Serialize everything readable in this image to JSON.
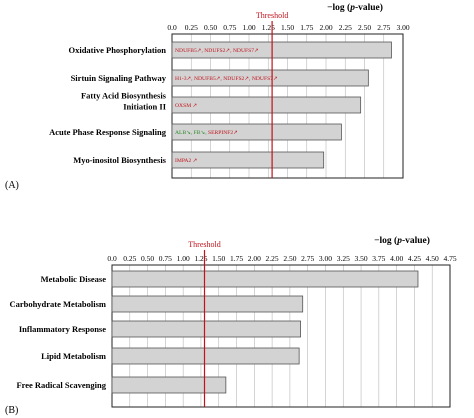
{
  "colors": {
    "bar_fill": "#d3d3d3",
    "bar_stroke": "#555555",
    "grid": "#b8b8b8",
    "threshold": "#c0131b",
    "gene_red": "#c0131b",
    "gene_green": "#2a8a2a"
  },
  "chart_data": [
    {
      "type": "bar",
      "orientation": "horizontal",
      "panel_label": "(A)",
      "xlabel_main": "−log (",
      "xlabel_italic": "p",
      "xlabel_end": "-value)",
      "threshold_label": "Threshold",
      "threshold": 1.3,
      "xlim": [
        0,
        3.0
      ],
      "ticks": [
        "0.0",
        "0.25",
        "0.50",
        "0.75",
        "1.00",
        "1.25",
        "1.50",
        "1.75",
        "2.00",
        "2.25",
        "2.50",
        "2.75",
        "3.00"
      ],
      "categories": [
        [
          "Oxidative Phosphorylation"
        ],
        [
          "Sirtuin Signaling Pathway"
        ],
        [
          "Fatty Acid Biosynthesis",
          "Initiation II"
        ],
        [
          "Acute Phase Response Signaling"
        ],
        [
          "Myo-inositol Biosynthesis"
        ]
      ],
      "values": [
        2.85,
        2.55,
        2.45,
        2.2,
        1.97
      ],
      "annotations": [
        [
          {
            "text": "NDUFB5↗, NDUFS2↗, NDUFS7↗",
            "color": "red"
          }
        ],
        [
          {
            "text": "H1-3↗, NDUFB5↗, NDUFS2↗, NDUFS7↗",
            "color": "red"
          }
        ],
        [
          {
            "text": "OXSM ↗",
            "color": "red"
          }
        ],
        [
          {
            "text": "ALB↘, FB↘, ",
            "color": "green"
          },
          {
            "text": "SERPINF2↗",
            "color": "red"
          }
        ],
        [
          {
            "text": "IMPA2 ↗",
            "color": "red"
          }
        ]
      ]
    },
    {
      "type": "bar",
      "orientation": "horizontal",
      "panel_label": "(B)",
      "xlabel_main": "−log (",
      "xlabel_italic": "p",
      "xlabel_end": "-value)",
      "threshold_label": "Threshold",
      "threshold": 1.3,
      "xlim": [
        0,
        4.75
      ],
      "ticks": [
        "0.0",
        "0.25",
        "0.50",
        "0.75",
        "1.00",
        "1.25",
        "1.50",
        "1.75",
        "2.00",
        "2.25",
        "2.50",
        "2.75",
        "3.00",
        "3.25",
        "3.50",
        "3.75",
        "4.00",
        "4.25",
        "4.50",
        "4.75"
      ],
      "categories": [
        [
          "Metabolic Disease"
        ],
        [
          "Carbohydrate Metabolism"
        ],
        [
          "Inflammatory Response"
        ],
        [
          "Lipid Metabolism"
        ],
        [
          "Free Radical Scavenging"
        ]
      ],
      "values": [
        4.3,
        2.68,
        2.65,
        2.63,
        1.6
      ],
      "annotations": [
        [],
        [],
        [],
        [],
        []
      ]
    }
  ]
}
